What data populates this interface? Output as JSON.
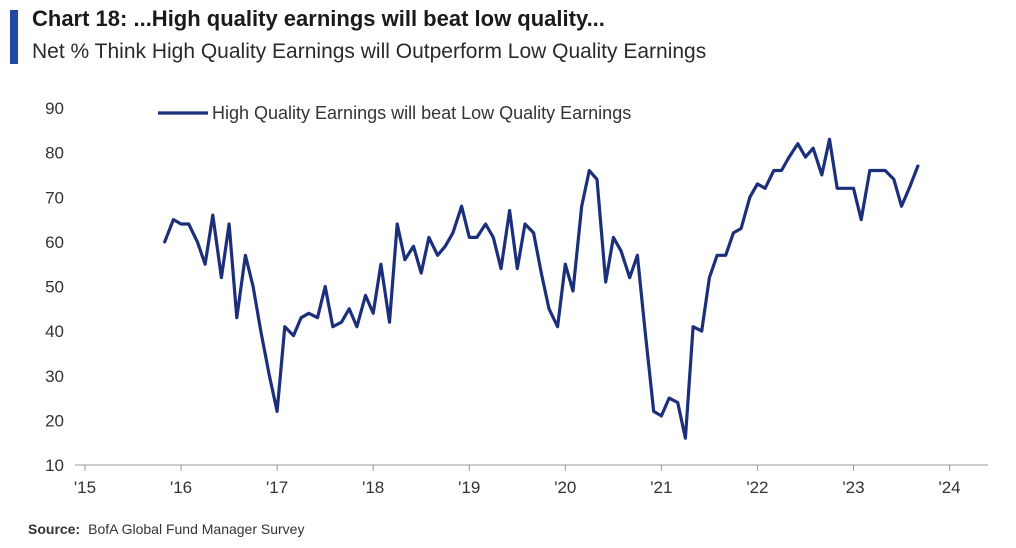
{
  "header": {
    "title": "Chart 18: ...High quality earnings will beat low quality...",
    "subtitle": "Net % Think High Quality Earnings will Outperform Low Quality Earnings"
  },
  "footer": {
    "source_label": "Source:",
    "source_text": "BofA Global Fund Manager Survey"
  },
  "colors": {
    "accent": "#1f4aa8",
    "series": "#1c2f7a",
    "axis": "#999999"
  },
  "chart_data": {
    "type": "line",
    "title": "Chart 18: ...High quality earnings will beat low quality...",
    "subtitle": "Net % Think High Quality Earnings will Outperform Low Quality Earnings",
    "xlabel": "",
    "ylabel": "",
    "xlim": [
      2015,
      2024.4
    ],
    "ylim": [
      10,
      90
    ],
    "yticks": [
      10,
      20,
      30,
      40,
      50,
      60,
      70,
      80,
      90
    ],
    "xticks": [
      2015,
      2016,
      2017,
      2018,
      2019,
      2020,
      2021,
      2022,
      2023,
      2024
    ],
    "xtick_labels": [
      "'15",
      "'16",
      "'17",
      "'18",
      "'19",
      "'20",
      "'21",
      "'22",
      "'23",
      "'24"
    ],
    "grid": false,
    "legend": {
      "placement": "top-left"
    },
    "series": [
      {
        "name": "High Quality Earnings will beat Low Quality Earnings",
        "x": [
          2015.83,
          2015.92,
          2016.0,
          2016.08,
          2016.17,
          2016.25,
          2016.33,
          2016.42,
          2016.5,
          2016.58,
          2016.67,
          2016.75,
          2016.83,
          2016.92,
          2017.0,
          2017.08,
          2017.17,
          2017.25,
          2017.33,
          2017.42,
          2017.5,
          2017.58,
          2017.67,
          2017.75,
          2017.83,
          2017.92,
          2018.0,
          2018.08,
          2018.17,
          2018.25,
          2018.33,
          2018.42,
          2018.5,
          2018.58,
          2018.67,
          2018.75,
          2018.83,
          2018.92,
          2019.0,
          2019.08,
          2019.17,
          2019.25,
          2019.33,
          2019.42,
          2019.5,
          2019.58,
          2019.67,
          2019.75,
          2019.83,
          2019.92,
          2020.0,
          2020.08,
          2020.17,
          2020.25,
          2020.33,
          2020.42,
          2020.5,
          2020.58,
          2020.67,
          2020.75,
          2020.83,
          2020.92,
          2021.0,
          2021.08,
          2021.17,
          2021.25,
          2021.33,
          2021.42,
          2021.5,
          2021.58,
          2021.67,
          2021.75,
          2021.83,
          2021.92,
          2022.0,
          2022.08,
          2022.17,
          2022.25,
          2022.33,
          2022.42,
          2022.5,
          2022.58,
          2022.67,
          2022.75,
          2022.83,
          2022.92,
          2023.0,
          2023.08,
          2023.17,
          2023.25,
          2023.33,
          2023.42,
          2023.5,
          2023.58,
          2023.67
        ],
        "values": [
          60,
          65,
          64,
          64,
          60,
          55,
          66,
          52,
          64,
          43,
          57,
          50,
          40,
          30,
          22,
          41,
          39,
          43,
          44,
          43,
          50,
          41,
          42,
          45,
          41,
          48,
          44,
          55,
          42,
          64,
          56,
          59,
          53,
          61,
          57,
          59,
          62,
          68,
          61,
          61,
          64,
          61,
          54,
          67,
          54,
          64,
          62,
          53,
          45,
          41,
          55,
          49,
          68,
          76,
          74,
          51,
          61,
          58,
          52,
          57,
          40,
          22,
          21,
          25,
          24,
          16,
          41,
          40,
          52,
          57,
          57,
          62,
          63,
          70,
          73,
          72,
          76,
          76,
          79,
          82,
          79,
          81,
          75,
          83,
          72,
          72,
          72,
          65,
          76,
          76,
          76,
          74,
          68,
          72,
          77
        ]
      }
    ]
  }
}
